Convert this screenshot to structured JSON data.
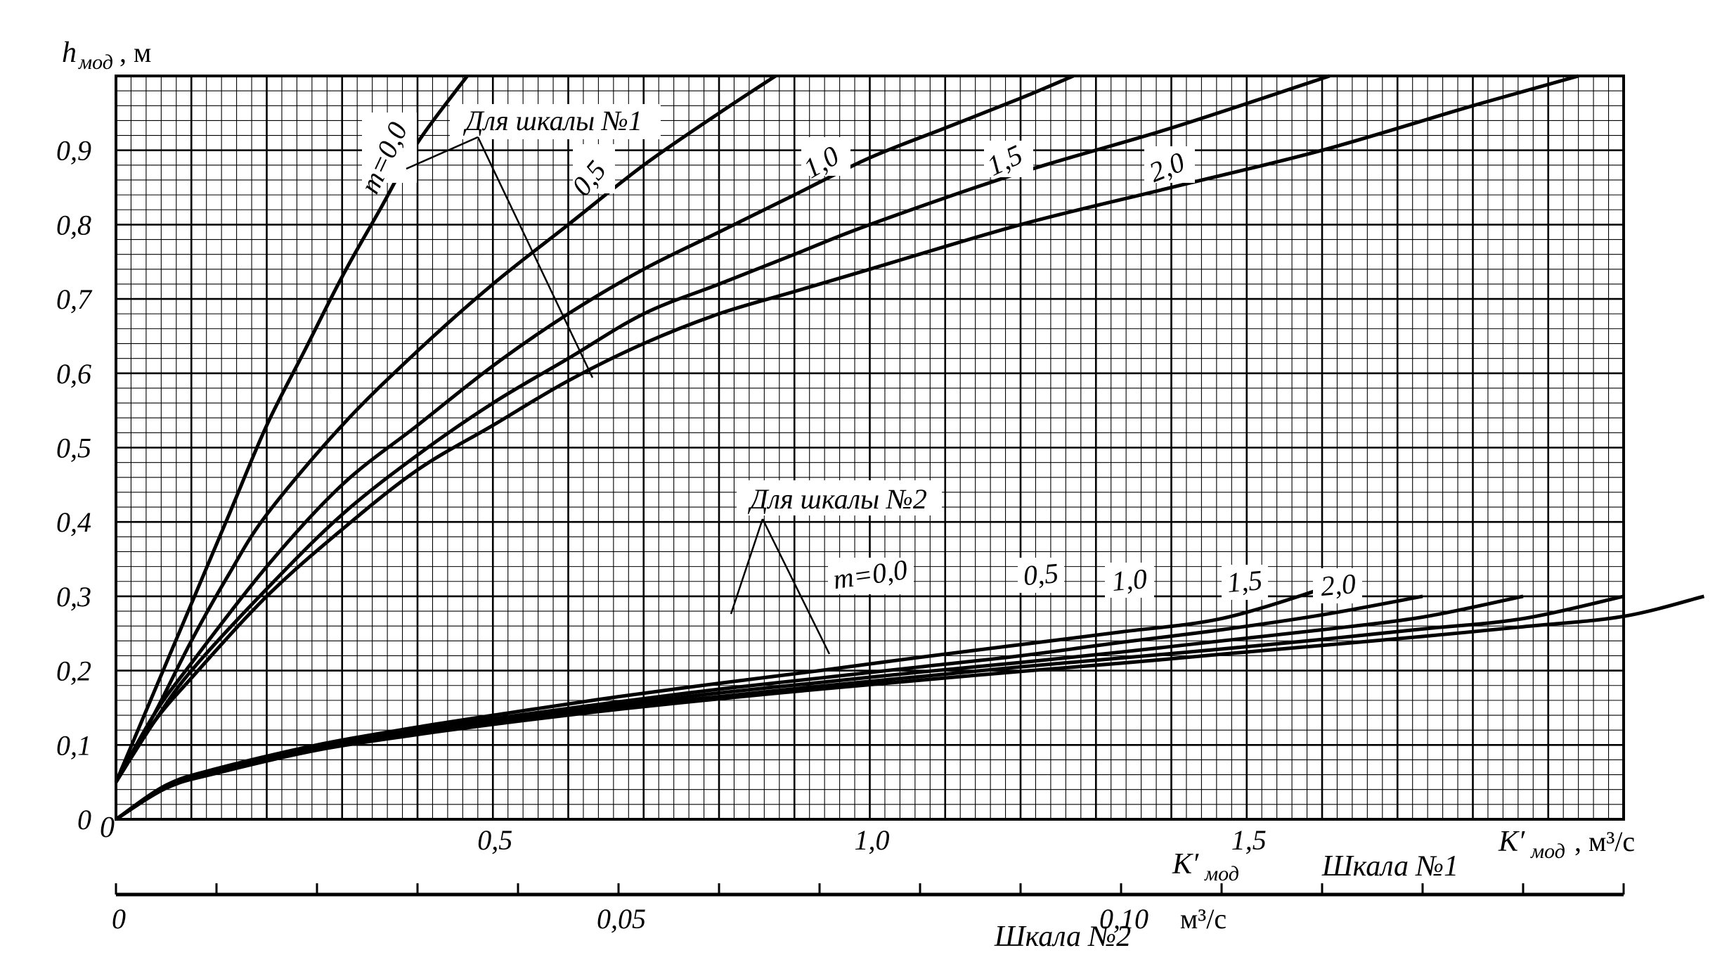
{
  "chart_data": {
    "type": "line",
    "y_axis": {
      "label_main": "h",
      "label_sub": "мод",
      "label_unit": ", м",
      "range": [
        0,
        1.0
      ],
      "ticks": [
        {
          "value": 0,
          "label": "0"
        },
        {
          "value": 0.1,
          "label": "0,1"
        },
        {
          "value": 0.2,
          "label": "0,2"
        },
        {
          "value": 0.3,
          "label": "0,3"
        },
        {
          "value": 0.4,
          "label": "0,4"
        },
        {
          "value": 0.5,
          "label": "0,5"
        },
        {
          "value": 0.6,
          "label": "0,6"
        },
        {
          "value": 0.7,
          "label": "0,7"
        },
        {
          "value": 0.8,
          "label": "0,8"
        },
        {
          "value": 0.9,
          "label": "0,9"
        }
      ]
    },
    "scale1": {
      "title": "Шкала №1",
      "label_main": "K′",
      "label_sub": "мод",
      "label_unit": ", м³/с",
      "range": [
        0,
        2.0
      ],
      "ticks": [
        {
          "value": 0.5,
          "label": "0,5"
        },
        {
          "value": 1.0,
          "label": "1,0"
        },
        {
          "value": 1.5,
          "label": "1,5"
        }
      ]
    },
    "scale2": {
      "title": "Шкала №2",
      "label_main": "K′",
      "label_sub": "мод",
      "label_unit": "м³/с",
      "range": [
        0,
        0.15
      ],
      "ticks": [
        {
          "value": 0,
          "label": "0"
        },
        {
          "value": 0.05,
          "label": "0,05"
        },
        {
          "value": 0.1,
          "label": "0,10"
        }
      ]
    },
    "annotation1": "Для шкалы №1",
    "annotation2": "Для шкалы №2",
    "series_scale1": [
      {
        "name": "m=0,0",
        "x": [
          0,
          0.05,
          0.1,
          0.15,
          0.2,
          0.25,
          0.3,
          0.35,
          0.4,
          0.466
        ],
        "y": [
          0.05,
          0.17,
          0.29,
          0.41,
          0.53,
          0.63,
          0.73,
          0.82,
          0.91,
          1.0
        ]
      },
      {
        "name": "0,5",
        "x": [
          0,
          0.05,
          0.1,
          0.15,
          0.2,
          0.3,
          0.4,
          0.5,
          0.6,
          0.7,
          0.8,
          0.875
        ],
        "y": [
          0.05,
          0.14,
          0.24,
          0.33,
          0.41,
          0.53,
          0.63,
          0.72,
          0.8,
          0.88,
          0.95,
          1.0
        ]
      },
      {
        "name": "1,0",
        "x": [
          0,
          0.05,
          0.1,
          0.2,
          0.3,
          0.4,
          0.5,
          0.6,
          0.7,
          0.8,
          0.9,
          1.0,
          1.1,
          1.2,
          1.27
        ],
        "y": [
          0.05,
          0.14,
          0.21,
          0.34,
          0.45,
          0.53,
          0.61,
          0.68,
          0.74,
          0.79,
          0.84,
          0.89,
          0.93,
          0.97,
          1.0
        ]
      },
      {
        "name": "1,5",
        "x": [
          0,
          0.05,
          0.1,
          0.2,
          0.3,
          0.4,
          0.5,
          0.6,
          0.7,
          0.8,
          0.9,
          1.0,
          1.2,
          1.4,
          1.61
        ],
        "y": [
          0.05,
          0.13,
          0.2,
          0.31,
          0.41,
          0.49,
          0.56,
          0.62,
          0.68,
          0.72,
          0.76,
          0.8,
          0.87,
          0.93,
          1.0
        ]
      },
      {
        "name": "2,0",
        "x": [
          0,
          0.05,
          0.1,
          0.2,
          0.3,
          0.4,
          0.5,
          0.6,
          0.7,
          0.8,
          0.9,
          1.0,
          1.2,
          1.4,
          1.6,
          1.8,
          1.94
        ],
        "y": [
          0.05,
          0.13,
          0.19,
          0.3,
          0.39,
          0.47,
          0.53,
          0.59,
          0.64,
          0.68,
          0.71,
          0.74,
          0.8,
          0.85,
          0.9,
          0.96,
          1.0
        ]
      }
    ],
    "series_scale2": [
      {
        "name": "m=0,0",
        "x": [
          0,
          0.005,
          0.01,
          0.02,
          0.03,
          0.04,
          0.05,
          0.06,
          0.07,
          0.08,
          0.09,
          0.1,
          0.11,
          0.12
        ],
        "y": [
          0.0,
          0.046,
          0.068,
          0.1,
          0.124,
          0.145,
          0.165,
          0.183,
          0.2,
          0.218,
          0.235,
          0.252,
          0.27,
          0.31
        ]
      },
      {
        "name": "0,5",
        "x": [
          0,
          0.005,
          0.01,
          0.02,
          0.03,
          0.04,
          0.05,
          0.06,
          0.07,
          0.08,
          0.09,
          0.1,
          0.11,
          0.12,
          0.13
        ],
        "y": [
          0.0,
          0.044,
          0.065,
          0.097,
          0.12,
          0.14,
          0.158,
          0.175,
          0.19,
          0.205,
          0.22,
          0.238,
          0.255,
          0.275,
          0.3
        ]
      },
      {
        "name": "1,0",
        "x": [
          0,
          0.005,
          0.01,
          0.02,
          0.03,
          0.04,
          0.05,
          0.06,
          0.07,
          0.08,
          0.09,
          0.1,
          0.11,
          0.12,
          0.13,
          0.14
        ],
        "y": [
          0.0,
          0.043,
          0.064,
          0.095,
          0.118,
          0.137,
          0.154,
          0.17,
          0.184,
          0.198,
          0.211,
          0.225,
          0.24,
          0.255,
          0.272,
          0.3
        ]
      },
      {
        "name": "1,5",
        "x": [
          0,
          0.005,
          0.01,
          0.02,
          0.03,
          0.04,
          0.05,
          0.06,
          0.07,
          0.08,
          0.09,
          0.1,
          0.11,
          0.12,
          0.13,
          0.14,
          0.15
        ],
        "y": [
          0.0,
          0.042,
          0.063,
          0.094,
          0.116,
          0.135,
          0.151,
          0.165,
          0.179,
          0.192,
          0.205,
          0.217,
          0.229,
          0.242,
          0.256,
          0.27,
          0.3
        ]
      },
      {
        "name": "2,0",
        "x": [
          0,
          0.005,
          0.01,
          0.02,
          0.03,
          0.04,
          0.05,
          0.06,
          0.07,
          0.08,
          0.09,
          0.1,
          0.11,
          0.12,
          0.13,
          0.14,
          0.15,
          0.158
        ],
        "y": [
          0.0,
          0.042,
          0.062,
          0.093,
          0.114,
          0.132,
          0.148,
          0.162,
          0.175,
          0.187,
          0.199,
          0.21,
          0.222,
          0.234,
          0.246,
          0.259,
          0.273,
          0.3
        ]
      }
    ],
    "grid": "millimetre paper: major every 0,1 (м) / 0,1 (м³/с), minor every 0,02"
  }
}
